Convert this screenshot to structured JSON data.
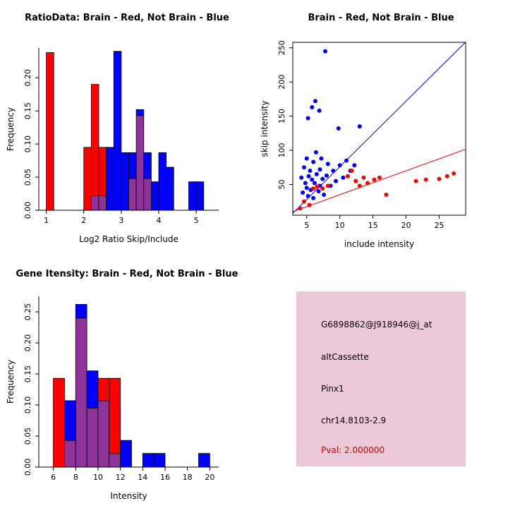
{
  "window": {
    "bg": "#ffffff"
  },
  "info_box": {
    "bg": "#ecc9d8",
    "probe_id": "G6898862@J918946@j_at",
    "event_type": "altCassette",
    "gene": "Pinx1",
    "location": "chr14.8103-2.9",
    "pval": "Pval: 2.000000",
    "pval_color": "#cc0000"
  },
  "chart_data": [
    {
      "type": "bar",
      "subtype": "overlaid-histogram",
      "title": "RatioData: Brain - Red, Not Brain - Blue",
      "xlabel": "Log2 Ratio Skip/Include",
      "ylabel": "Frequency",
      "xlim": [
        0.8,
        5.6
      ],
      "ylim": [
        0,
        0.245
      ],
      "xticks": {
        "values": [
          1,
          2,
          3,
          4,
          5
        ],
        "labels": [
          "1",
          "2",
          "3",
          "4",
          "5"
        ]
      },
      "yticks": {
        "values": [
          0,
          0.05,
          0.1,
          0.15,
          0.2
        ],
        "labels": [
          "0.00",
          "0.05",
          "0.10",
          "0.15",
          "0.20"
        ]
      },
      "bin_width": 0.2,
      "colors": {
        "red": "#ff0000",
        "blue": "#0000ff",
        "overlap": "#8e3399"
      },
      "legend": {
        "red": "Brain",
        "blue": "Not Brain"
      },
      "bins": [
        {
          "x": 1.0,
          "red": 0.238,
          "blue": 0
        },
        {
          "x": 2.0,
          "red": 0.095,
          "blue": 0
        },
        {
          "x": 2.2,
          "red": 0.19,
          "blue": 0.022
        },
        {
          "x": 2.4,
          "red": 0.095,
          "blue": 0.022
        },
        {
          "x": 2.6,
          "red": 0,
          "blue": 0.095
        },
        {
          "x": 2.8,
          "red": 0,
          "blue": 0.24
        },
        {
          "x": 3.0,
          "red": 0,
          "blue": 0.087
        },
        {
          "x": 3.2,
          "red": 0.048,
          "blue": 0.087
        },
        {
          "x": 3.4,
          "red": 0.143,
          "blue": 0.152
        },
        {
          "x": 3.6,
          "red": 0.048,
          "blue": 0.087
        },
        {
          "x": 3.8,
          "red": 0,
          "blue": 0.043
        },
        {
          "x": 4.0,
          "red": 0,
          "blue": 0.087
        },
        {
          "x": 4.2,
          "red": 0,
          "blue": 0.065
        },
        {
          "x": 4.8,
          "red": 0,
          "blue": 0.043
        },
        {
          "x": 5.0,
          "red": 0,
          "blue": 0.043
        }
      ]
    },
    {
      "type": "scatter",
      "title": "Brain - Red, Not Brain - Blue",
      "xlabel": "include intensity",
      "ylabel": "skip intensity",
      "xlim": [
        2.9,
        29
      ],
      "ylim": [
        5,
        258
      ],
      "xticks": {
        "values": [
          5,
          10,
          15,
          20,
          25
        ],
        "labels": [
          "5",
          "10",
          "15",
          "20",
          "25"
        ]
      },
      "yticks": {
        "values": [
          50,
          100,
          150,
          200,
          250
        ],
        "labels": [
          "50",
          "100",
          "150",
          "200",
          "250"
        ]
      },
      "box": true,
      "series": [
        {
          "name": "Not Brain",
          "color": "#0000ff",
          "points": [
            [
              4.2,
              60
            ],
            [
              4.4,
              38
            ],
            [
              4.6,
              75
            ],
            [
              4.8,
              52
            ],
            [
              5.0,
              88
            ],
            [
              5.0,
              45
            ],
            [
              5.2,
              33
            ],
            [
              5.2,
              147
            ],
            [
              5.3,
              62
            ],
            [
              5.5,
              70
            ],
            [
              5.6,
              42
            ],
            [
              5.8,
              57
            ],
            [
              5.8,
              163
            ],
            [
              6.0,
              30
            ],
            [
              6.0,
              83
            ],
            [
              6.2,
              52
            ],
            [
              6.3,
              172
            ],
            [
              6.4,
              97
            ],
            [
              6.5,
              65
            ],
            [
              6.8,
              40
            ],
            [
              6.9,
              158
            ],
            [
              7.0,
              72
            ],
            [
              7.0,
              48
            ],
            [
              7.2,
              88
            ],
            [
              7.4,
              58
            ],
            [
              7.6,
              35
            ],
            [
              7.8,
              245
            ],
            [
              8.0,
              63
            ],
            [
              8.2,
              80
            ],
            [
              8.6,
              48
            ],
            [
              9.0,
              70
            ],
            [
              9.4,
              55
            ],
            [
              9.8,
              132
            ],
            [
              10.0,
              78
            ],
            [
              10.5,
              60
            ],
            [
              11.0,
              85
            ],
            [
              11.6,
              70
            ],
            [
              12.2,
              78
            ],
            [
              13.0,
              135
            ]
          ]
        },
        {
          "name": "Brain",
          "color": "#ff0000",
          "points": [
            [
              4.0,
              15
            ],
            [
              4.6,
              25
            ],
            [
              5.4,
              20
            ],
            [
              6.0,
              44
            ],
            [
              6.6,
              47
            ],
            [
              7.4,
              44
            ],
            [
              8.2,
              48
            ],
            [
              11.2,
              62
            ],
            [
              11.8,
              70
            ],
            [
              12.4,
              55
            ],
            [
              13.0,
              48
            ],
            [
              13.6,
              60
            ],
            [
              14.2,
              52
            ],
            [
              15.2,
              57
            ],
            [
              16.0,
              60
            ],
            [
              17.0,
              35
            ],
            [
              21.5,
              55
            ],
            [
              23.0,
              57
            ],
            [
              25.0,
              58
            ],
            [
              26.2,
              62
            ],
            [
              27.2,
              66
            ]
          ]
        }
      ],
      "lines": [
        {
          "color": "#0000ff",
          "intercept": -20,
          "slope": 9.6
        },
        {
          "color": "#ff0000",
          "intercept": 0,
          "slope": 3.5
        }
      ]
    },
    {
      "type": "bar",
      "subtype": "overlaid-histogram",
      "title": "Gene Itensity: Brain - Red, Not Brain - Blue",
      "xlabel": "Intensity",
      "ylabel": "Frequency",
      "xlim": [
        4.7,
        20.8
      ],
      "ylim": [
        0,
        0.275
      ],
      "xticks": {
        "values": [
          6,
          8,
          10,
          12,
          14,
          16,
          18,
          20
        ],
        "labels": [
          "6",
          "8",
          "10",
          "12",
          "14",
          "16",
          "18",
          "20"
        ]
      },
      "yticks": {
        "values": [
          0,
          0.05,
          0.1,
          0.15,
          0.2,
          0.25
        ],
        "labels": [
          "0.00",
          "0.05",
          "0.10",
          "0.15",
          "0.20",
          "0.25"
        ]
      },
      "bin_width": 1,
      "colors": {
        "red": "#ff0000",
        "blue": "#0000ff",
        "overlap": "#8e3399"
      },
      "legend": {
        "red": "Brain",
        "blue": "Not Brain"
      },
      "bins": [
        {
          "x": 6,
          "red": 0.143,
          "blue": 0
        },
        {
          "x": 7,
          "red": 0.043,
          "blue": 0.107
        },
        {
          "x": 8,
          "red": 0.24,
          "blue": 0.262
        },
        {
          "x": 9,
          "red": 0.095,
          "blue": 0.155
        },
        {
          "x": 10,
          "red": 0.143,
          "blue": 0.107
        },
        {
          "x": 11,
          "red": 0.143,
          "blue": 0.022
        },
        {
          "x": 12,
          "red": 0,
          "blue": 0.043
        },
        {
          "x": 14,
          "red": 0,
          "blue": 0.022
        },
        {
          "x": 15,
          "red": 0,
          "blue": 0.022
        },
        {
          "x": 19,
          "red": 0,
          "blue": 0.022
        }
      ]
    }
  ]
}
